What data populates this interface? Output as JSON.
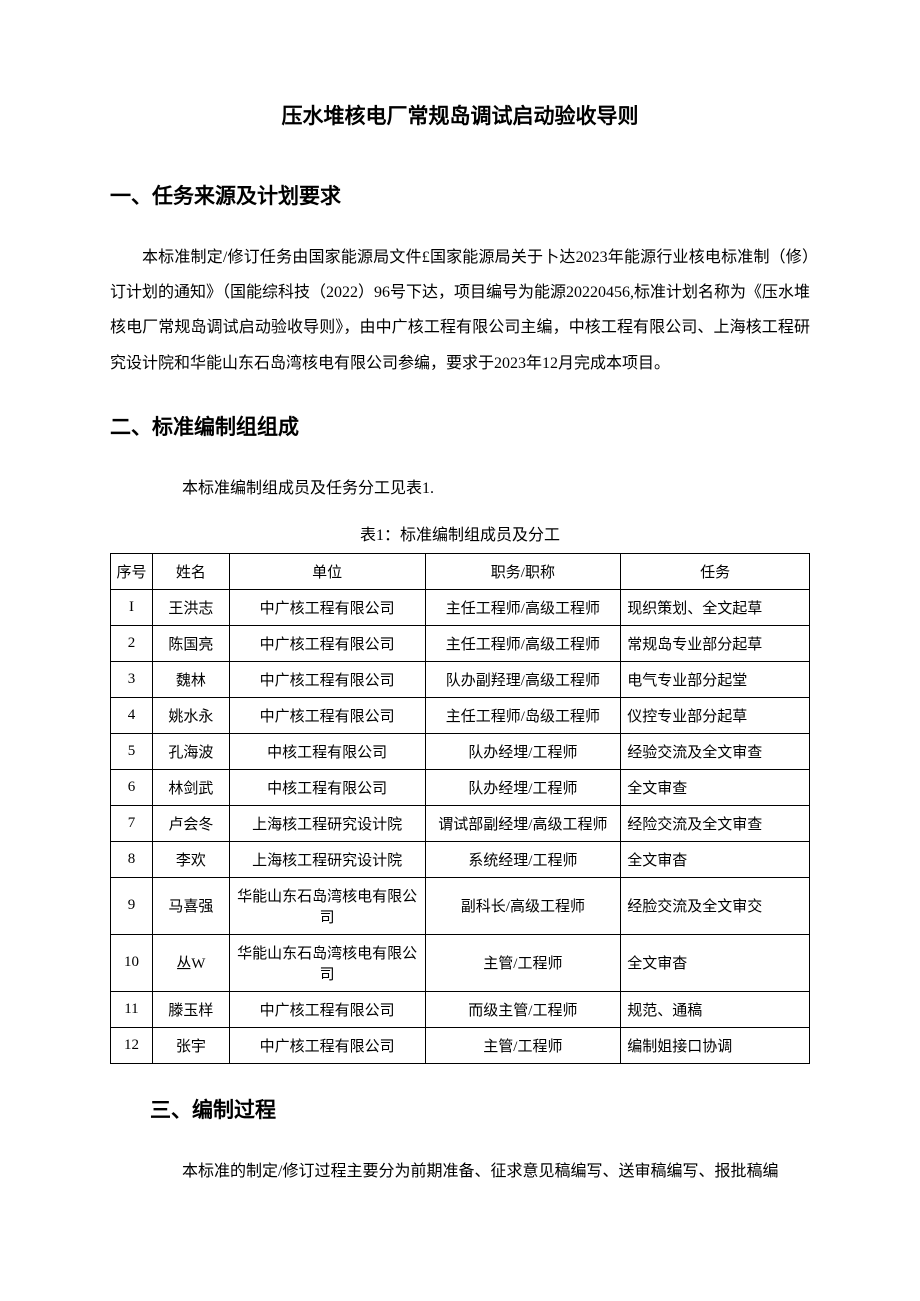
{
  "title": "压水堆核电厂常规岛调试启动验收导则",
  "section1": {
    "heading": "一、任务来源及计划要求",
    "paragraph": "本标准制定/修订任务由国家能源局文件£国家能源局关于卜达2023年能源行业核电标准制（修）订计划的通知》（国能综科技（2022）96号下达，项目编号为能源20220456,标准计划名称为《压水堆核电厂常规岛调试启动验收导则》，由中广核工程有限公司主编，中核工程有限公司、上海核工程研究设计院和华能山东石岛湾核电有限公司参编，要求于2023年12月完成本项目。"
  },
  "section2": {
    "heading": "二、标准编制组组成",
    "intro": "本标准编制组成员及任务分工见表1.",
    "table_caption": "表1：标准编制组成员及分工",
    "headers": {
      "seq": "序号",
      "name": "姓名",
      "unit": "单位",
      "role": "职务/职称",
      "task": "任务"
    },
    "rows": [
      {
        "seq": "I",
        "name": "王洪志",
        "unit": "中广核工程有限公司",
        "role": "主任工程师/高级工程师",
        "task": "现织策划、全文起草"
      },
      {
        "seq": "2",
        "name": "陈国亮",
        "unit": "中广核工程有限公司",
        "role": "主任工程师/高级工程师",
        "task": "常规岛专业部分起草"
      },
      {
        "seq": "3",
        "name": "魏林",
        "unit": "中广核工程有限公司",
        "role": "队办副羟理/高级工程师",
        "task": "电气专业部分起堂"
      },
      {
        "seq": "4",
        "name": "姚水永",
        "unit": "中广核工程有限公司",
        "role": "主任工程师/岛级工程师",
        "task": "仪控专业部分起草"
      },
      {
        "seq": "5",
        "name": "孔海波",
        "unit": "中核工程有限公司",
        "role": "队办经埋/工程师",
        "task": "经验交流及全文审查"
      },
      {
        "seq": "6",
        "name": "林剑武",
        "unit": "中核工程有限公司",
        "role": "队办经埋/工程师",
        "task": "全文审查"
      },
      {
        "seq": "7",
        "name": "卢会冬",
        "unit": "上海核工程研究设计院",
        "role": "谓试部副经埋/高级工程师",
        "task": "经险交流及全文审查"
      },
      {
        "seq": "8",
        "name": "李欢",
        "unit": "上海核工程研究设计院",
        "role": "系统经理/工程师",
        "task": "全文审杳"
      },
      {
        "seq": "9",
        "name": "马喜强",
        "unit": "华能山东石岛湾核电有限公司",
        "role": "副科长/高级工程师",
        "task": "经脸交流及全文审交"
      },
      {
        "seq": "10",
        "name": "丛W",
        "unit": "华能山东石岛湾核电有限公司",
        "role": "主管/工程师",
        "task": "全文审杳"
      },
      {
        "seq": "11",
        "name": "滕玉样",
        "unit": "中广核工程有限公司",
        "role": "而级主管/工程师",
        "task": "规范、通稿"
      },
      {
        "seq": "12",
        "name": "张宇",
        "unit": "中广核工程有限公司",
        "role": "主管/工程师",
        "task": "编制姐接口协调"
      }
    ]
  },
  "section3": {
    "heading": "三、编制过程",
    "paragraph": "本标准的制定/修订过程主要分为前期准备、征求意见稿编写、送审稿编写、报批稿编"
  }
}
